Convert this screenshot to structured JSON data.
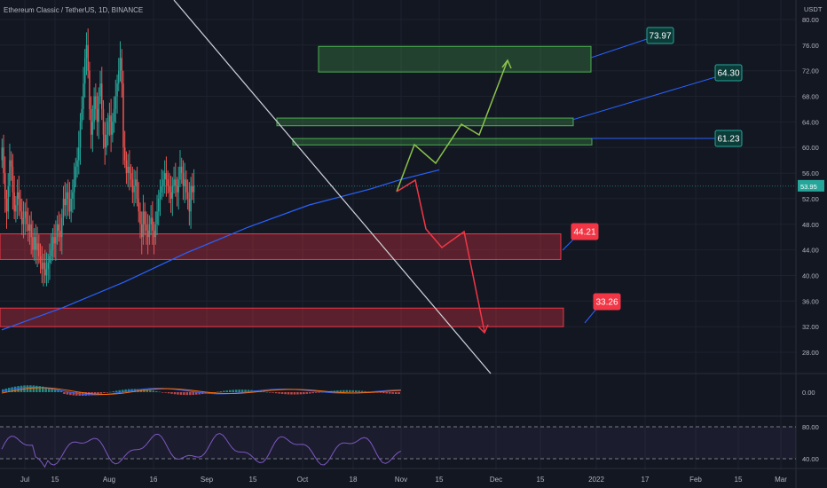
{
  "header": {
    "symbol_title": "Ethereum Classic / TetherUS, 1D, BINANCE"
  },
  "price_axis": {
    "unit": "USDT",
    "ticks": [
      "80.00",
      "76.00",
      "72.00",
      "68.00",
      "64.00",
      "60.00",
      "56.00",
      "52.00",
      "48.00",
      "44.00",
      "40.00",
      "36.00",
      "32.00",
      "28.00"
    ],
    "last_price": "53.95"
  },
  "macd_axis": {
    "ticks": [
      "0.00"
    ]
  },
  "rsi_axis": {
    "ticks": [
      "80.00",
      "40.00"
    ]
  },
  "time_axis": {
    "labels": [
      "Jul",
      "15",
      "Aug",
      "16",
      "Sep",
      "15",
      "Oct",
      "18",
      "Nov",
      "15",
      "Dec",
      "15",
      "2022",
      "17",
      "Feb",
      "15",
      "Mar"
    ]
  },
  "annotations": {
    "target_1": "73.97",
    "target_2": "64.30",
    "target_3": "61.23",
    "support_1": "44.21",
    "support_2": "33.26"
  },
  "colors": {
    "background": "#131722",
    "bull": "#26a69a",
    "bear": "#ef5350",
    "ma_line": "#2962ff",
    "green_zone": "#4caf50",
    "red_zone": "#f23645",
    "macd_line": "#2962ff",
    "signal_line": "#ff6d00",
    "rsi_line": "#7e57c2"
  },
  "chart_data": {
    "type": "candlestick",
    "title": "Ethereum Classic / TetherUS, 1D, BINANCE",
    "x_range": [
      "2021-06-27",
      "2022-03-05"
    ],
    "ylim": [
      26,
      82
    ],
    "last_price": 53.95,
    "closes": [
      60,
      56,
      52,
      50,
      54,
      58,
      57,
      53,
      50,
      51,
      53,
      52,
      50,
      48,
      49,
      50,
      48,
      47,
      48,
      46,
      44,
      46,
      44,
      45,
      43,
      42,
      41,
      42,
      40,
      41,
      42,
      43,
      44,
      46,
      45,
      46,
      48,
      47,
      46,
      49,
      52,
      51,
      53,
      52,
      50,
      52,
      53,
      55,
      57,
      58,
      60,
      64,
      66,
      70,
      74,
      76,
      72,
      66,
      62,
      64,
      68,
      66,
      64,
      68,
      70,
      66,
      62,
      60,
      62,
      64,
      65,
      62,
      64,
      66,
      68,
      70,
      72,
      74,
      70,
      60,
      58,
      56,
      57,
      56,
      55,
      53,
      54,
      55,
      52,
      50,
      48,
      46,
      50,
      48,
      47,
      46,
      48,
      49,
      47,
      46,
      48,
      50,
      52,
      53,
      54,
      55,
      56,
      55,
      54,
      53,
      52,
      54,
      55,
      54,
      53,
      55,
      57,
      56,
      54,
      55,
      53,
      52,
      50,
      54,
      53,
      54
    ],
    "ma_line": [
      [
        0,
        31.5
      ],
      [
        40,
        35
      ],
      [
        80,
        39
      ],
      [
        120,
        43.5
      ],
      [
        160,
        47.5
      ],
      [
        200,
        51
      ],
      [
        240,
        53.5
      ],
      [
        260,
        55
      ],
      [
        285,
        56.5
      ]
    ],
    "zones": [
      {
        "kind": "resistance",
        "from": 71.8,
        "to": 75.8
      },
      {
        "kind": "resistance",
        "from": 63.4,
        "to": 64.6
      },
      {
        "kind": "resistance",
        "from": 60.4,
        "to": 61.4
      },
      {
        "kind": "support",
        "from": 42.5,
        "to": 46.5
      },
      {
        "kind": "support",
        "from": 32.0,
        "to": 34.9
      }
    ],
    "targets": [
      73.97,
      64.3,
      61.23
    ],
    "supports": [
      44.21,
      33.26
    ],
    "bull_path": [
      [
        285,
        54
      ],
      [
        298,
        58
      ],
      [
        312,
        56
      ],
      [
        330,
        62
      ],
      [
        345,
        60
      ],
      [
        367,
        74
      ]
    ],
    "bear_path": [
      [
        285,
        54
      ],
      [
        298,
        55
      ],
      [
        305,
        47
      ],
      [
        320,
        44
      ],
      [
        335,
        47.5
      ],
      [
        350,
        31.5
      ]
    ],
    "trendline": [
      [
        0,
        84
      ],
      [
        350,
        26
      ]
    ],
    "macd": {
      "level_label": "0.00"
    },
    "rsi": {
      "levels": [
        80,
        40
      ]
    }
  }
}
